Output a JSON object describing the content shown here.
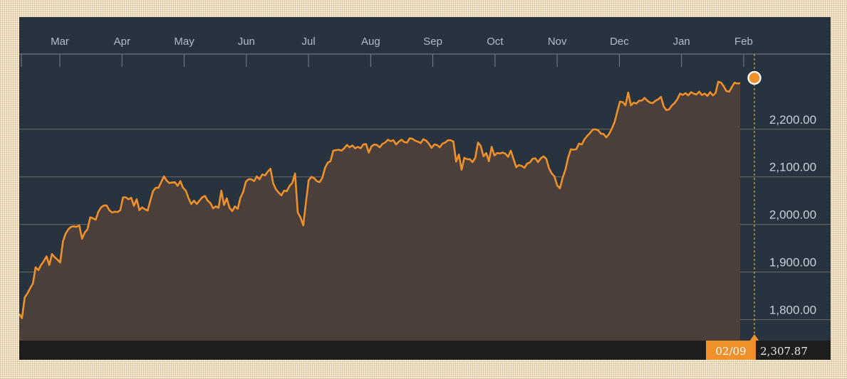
{
  "chart_data": {
    "type": "area",
    "title": "",
    "xlabel": "",
    "ylabel": "",
    "x_ticks": [
      "Mar",
      "Apr",
      "May",
      "Jun",
      "Jul",
      "Aug",
      "Sep",
      "Oct",
      "Nov",
      "Dec",
      "Jan",
      "Feb"
    ],
    "y_ticks": [
      1800,
      1900,
      2000,
      2100,
      2200
    ],
    "y_tick_labels": [
      "1,800.00",
      "1,900.00",
      "2,000.00",
      "2,100.00",
      "2,200.00"
    ],
    "ylim": [
      1756,
      2358
    ],
    "grid": true,
    "colors": {
      "line": "#f0902a",
      "fill": "#4a3f3b",
      "background": "#283340",
      "grid": "#6f6a66",
      "axis_band": "#1e1e1e",
      "readout_bg": "#f0902a",
      "readout_value_bg": "#1e1e1e",
      "readout_value_text": "#e9e9e9"
    },
    "series": [
      {
        "values": [
          1812,
          1803,
          1847,
          1855,
          1866,
          1876,
          1910,
          1904,
          1915,
          1923,
          1933,
          1915,
          1938,
          1931,
          1926,
          1920,
          1964,
          1981,
          1990,
          1995,
          1996,
          1995,
          1998,
          1970,
          1983,
          1990,
          2015,
          2013,
          2010,
          2027,
          2036,
          2040,
          2040,
          2030,
          2025,
          2027,
          2026,
          2030,
          2057,
          2057,
          2053,
          2056,
          2039,
          2053,
          2030,
          2036,
          2032,
          2029,
          2050,
          2070,
          2077,
          2077,
          2089,
          2101,
          2092,
          2087,
          2088,
          2089,
          2081,
          2091,
          2077,
          2071,
          2055,
          2043,
          2050,
          2043,
          2050,
          2057,
          2060,
          2050,
          2045,
          2034,
          2038,
          2035,
          2071,
          2041,
          2055,
          2035,
          2028,
          2038,
          2033,
          2056,
          2068,
          2090,
          2095,
          2095,
          2091,
          2101,
          2095,
          2105,
          2103,
          2111,
          2117,
          2086,
          2074,
          2067,
          2061,
          2071,
          2070,
          2081,
          2087,
          2107,
          2025,
          2015,
          1998,
          2047,
          2093,
          2100,
          2097,
          2091,
          2089,
          2098,
          2119,
          2130,
          2133,
          2155,
          2156,
          2157,
          2155,
          2160,
          2167,
          2162,
          2166,
          2160,
          2163,
          2160,
          2168,
          2169,
          2151,
          2164,
          2168,
          2167,
          2162,
          2169,
          2172,
          2178,
          2175,
          2177,
          2168,
          2174,
          2178,
          2173,
          2172,
          2181,
          2180,
          2176,
          2174,
          2171,
          2179,
          2176,
          2170,
          2161,
          2168,
          2167,
          2162,
          2170,
          2172,
          2177,
          2177,
          2174,
          2132,
          2147,
          2115,
          2140,
          2137,
          2137,
          2131,
          2140,
          2172,
          2165,
          2143,
          2150,
          2133,
          2163,
          2145,
          2150,
          2149,
          2151,
          2149,
          2142,
          2155,
          2138,
          2120,
          2125,
          2123,
          2119,
          2128,
          2130,
          2138,
          2139,
          2131,
          2139,
          2143,
          2138,
          2118,
          2107,
          2101,
          2082,
          2076,
          2098,
          2115,
          2140,
          2158,
          2157,
          2158,
          2170,
          2168,
          2179,
          2186,
          2192,
          2199,
          2200,
          2198,
          2191,
          2190,
          2183,
          2190,
          2201,
          2215,
          2237,
          2258,
          2257,
          2250,
          2277,
          2250,
          2256,
          2254,
          2260,
          2260,
          2266,
          2260,
          2256,
          2255,
          2260,
          2263,
          2268,
          2248,
          2240,
          2242,
          2250,
          2255,
          2263,
          2275,
          2272,
          2276,
          2271,
          2278,
          2275,
          2273,
          2279,
          2272,
          2275,
          2270,
          2278,
          2271,
          2276,
          2300,
          2298,
          2290,
          2280,
          2279,
          2289,
          2298,
          2296,
          2297
        ]
      }
    ],
    "current_point": {
      "date": "02/09",
      "value": 2307.87,
      "value_label": "2,307.87"
    }
  }
}
